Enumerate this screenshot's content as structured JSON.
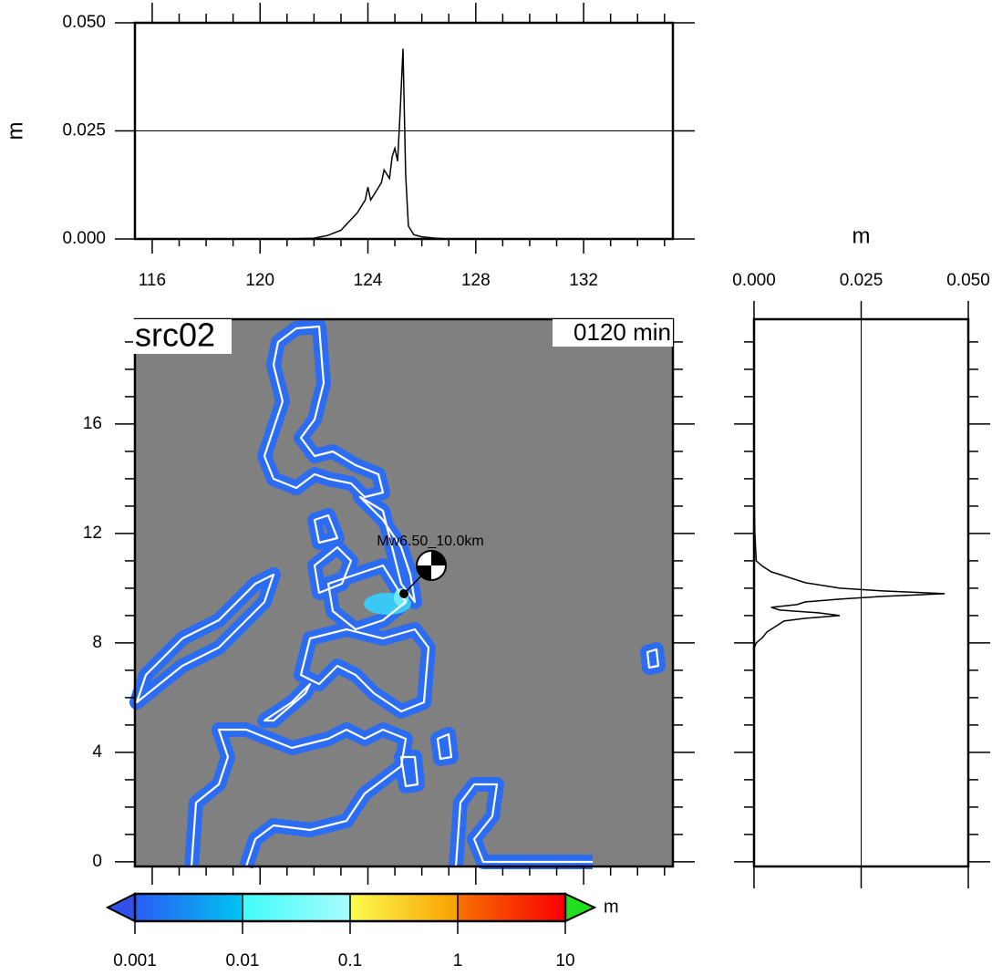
{
  "chart_data": [
    {
      "type": "line",
      "ylabel": "m",
      "xlim": [
        115.36,
        135.31
      ],
      "ylim": [
        0,
        0.05
      ],
      "xticks": [
        116,
        120,
        124,
        128,
        132
      ],
      "minor_xticks": [
        117,
        118,
        119,
        121,
        122,
        123,
        125,
        126,
        127,
        129,
        130,
        131,
        133,
        134,
        135
      ],
      "yticks": [
        {
          "value": 0,
          "label": "0.000"
        },
        {
          "value": 0.025,
          "label": "0.025"
        },
        {
          "value": 0.05,
          "label": "0.050"
        }
      ],
      "grid": true,
      "color": "#000000",
      "x": [
        115.4,
        121,
        122,
        122.5,
        123,
        123.3,
        123.6,
        123.9,
        124.0,
        124.1,
        124.3,
        124.5,
        124.6,
        124.8,
        124.9,
        125.0,
        125.1,
        125.2,
        125.3,
        125.4,
        125.5,
        125.7,
        126,
        126.5,
        127,
        135.3
      ],
      "values": [
        0,
        0,
        0.0002,
        0.0008,
        0.002,
        0.004,
        0.006,
        0.009,
        0.012,
        0.009,
        0.011,
        0.013,
        0.016,
        0.014,
        0.019,
        0.021,
        0.018,
        0.03,
        0.044,
        0.015,
        0.003,
        0.001,
        0.0005,
        0.0002,
        0,
        0
      ]
    },
    {
      "type": "map",
      "title": "src02",
      "subtitle": "0120 min",
      "event_label": "Mw6.50_10.0km",
      "xlim": [
        115.36,
        135.31
      ],
      "ylim": [
        -0.17,
        19.83
      ],
      "xticks": [
        116,
        120,
        124,
        128,
        132
      ],
      "minor_xticks": [
        117,
        118,
        119,
        121,
        122,
        123,
        125,
        126,
        127,
        129,
        130,
        131,
        133,
        134,
        135
      ],
      "yticks": [
        0,
        4,
        8,
        12,
        16
      ],
      "minor_yticks": [
        1,
        2,
        3,
        5,
        6,
        7,
        9,
        10,
        11,
        13,
        14,
        15,
        17,
        18,
        19
      ],
      "background": "#808080",
      "coast_color": "#ffffff",
      "band_color": "#2b6cf2"
    },
    {
      "type": "line",
      "orientation": "vertical",
      "xlabel": "m",
      "xlim": [
        0,
        0.05
      ],
      "ylim": [
        -0.17,
        19.83
      ],
      "xticks": [
        {
          "value": 0,
          "label": "0.000"
        },
        {
          "value": 0.025,
          "label": "0.025"
        },
        {
          "value": 0.05,
          "label": "0.050"
        }
      ],
      "yticks": [
        0,
        4,
        8,
        12,
        16
      ],
      "minor_yticks": [
        1,
        2,
        3,
        5,
        6,
        7,
        9,
        10,
        11,
        13,
        14,
        15,
        17,
        18,
        19
      ],
      "grid": true,
      "color": "#000000",
      "y": [
        -0.17,
        7.8,
        8.0,
        8.2,
        8.4,
        8.6,
        8.8,
        8.9,
        9.0,
        9.1,
        9.2,
        9.3,
        9.4,
        9.5,
        9.6,
        9.7,
        9.8,
        9.9,
        10.0,
        10.2,
        10.4,
        10.6,
        10.8,
        11,
        12,
        14
      ],
      "values": [
        0,
        0,
        0.0005,
        0.002,
        0.003,
        0.005,
        0.007,
        0.012,
        0.02,
        0.015,
        0.006,
        0.004,
        0.01,
        0.012,
        0.02,
        0.03,
        0.0445,
        0.03,
        0.02,
        0.012,
        0.008,
        0.004,
        0.002,
        0.0005,
        0.0002,
        0
      ]
    },
    {
      "type": "colorbar",
      "label": "m",
      "log_scale": true,
      "xlim": [
        0.001,
        10
      ],
      "xticks": [
        0.001,
        0.01,
        0.1,
        1,
        10
      ],
      "colors": [
        [
          "#2a5cf5",
          "#00c4f0"
        ],
        [
          "#40fcfc",
          "#a8fcfc"
        ],
        [
          "#fcfc50",
          "#f8a000"
        ],
        [
          "#f87000",
          "#f80000"
        ]
      ],
      "under_color": "#3050e8",
      "over_color": "#20e020"
    }
  ]
}
